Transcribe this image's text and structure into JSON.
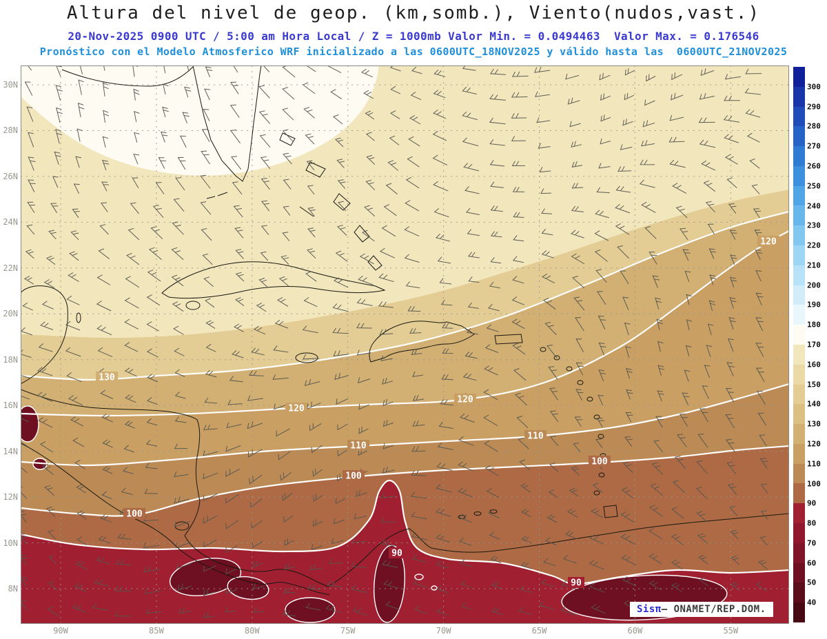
{
  "header": {
    "title": "Altura del nivel de geop. (km,somb.), Viento(nudos,vast.)",
    "valid_line": "20-Nov-2025 0900 UTC / 5:00 am Hora Local / Z = 1000mb Valor Min. = 0.0494463  Valor Max. = 0.176546",
    "model_line": "Pronóstico con el Modelo Atmosferico WRF inicializado a las 0600UTC_18NOV2025 y válido hasta las  0600UTC_21NOV2025"
  },
  "attribution": {
    "brand": "Sisπ",
    "text": "– ONAMET/REP.DOM."
  },
  "chart_data": {
    "type": "heatmap",
    "title": "Altura del nivel de geop. (km,somb.), Viento(nudos,vast.)",
    "field": "geopotential height (shaded) with wind barbs",
    "level": "1000mb",
    "valid_time": "20-Nov-2025 0900 UTC / 5:00 am Hora Local",
    "model": "WRF",
    "initialized": "0600UTC_18NOV2025",
    "valid_until": "0600UTC_21NOV2025",
    "value_min": 0.0494463,
    "value_max": 0.176546,
    "lat_ticks": [
      "30N",
      "28N",
      "26N",
      "24N",
      "22N",
      "20N",
      "18N",
      "16N",
      "14N",
      "12N",
      "10N",
      "8N"
    ],
    "lon_ticks": [
      "90W",
      "85W",
      "80W",
      "75W",
      "70W",
      "65W",
      "60W",
      "55W"
    ],
    "contour_labels": [
      "130",
      "120",
      "120",
      "120",
      "110",
      "110",
      "100",
      "100",
      "100",
      "90",
      "90"
    ],
    "colorbar": {
      "ticks": [
        40,
        50,
        60,
        70,
        80,
        90,
        100,
        110,
        120,
        130,
        140,
        150,
        160,
        170,
        180,
        190,
        200,
        210,
        220,
        230,
        240,
        250,
        260,
        270,
        280,
        290,
        300
      ],
      "colors": [
        "#470a14",
        "#5c0d1b",
        "#6f1022",
        "#801428",
        "#90172d",
        "#a01f31",
        "#ad6a45",
        "#bc8a55",
        "#c99f63",
        "#d2af72",
        "#dbbf83",
        "#e4cd94",
        "#ebdaa6",
        "#f2e6bd",
        "#fdfbf2",
        "#e9f6fb",
        "#d2edf9",
        "#b8e2f7",
        "#9dd5f4",
        "#82c7f0",
        "#68b7ec",
        "#4fa5e6",
        "#3c90dd",
        "#2f7ad2",
        "#2663c6",
        "#1f4cb8",
        "#1836aa",
        "#10209a"
      ]
    }
  }
}
